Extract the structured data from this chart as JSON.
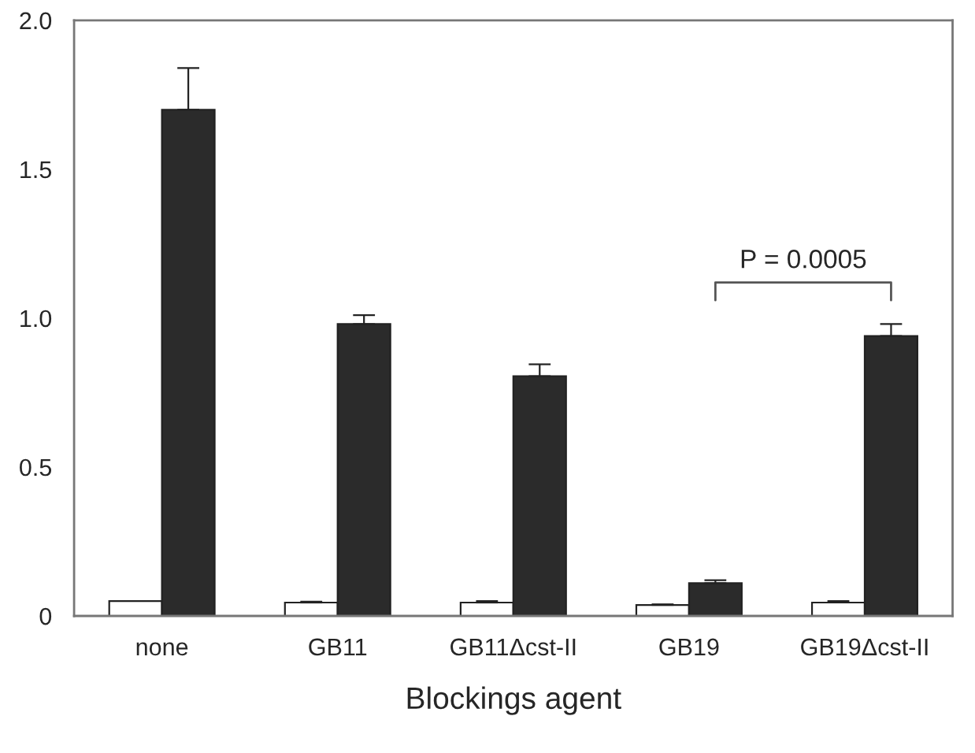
{
  "chart_data": {
    "type": "bar",
    "xlabel": "Blockings agent",
    "categories": [
      "none",
      "GB11",
      "GB11Δcst-II",
      "GB19",
      "GB19Δcst-II"
    ],
    "series": [
      {
        "color": "#ffffff",
        "values": [
          0.05,
          0.045,
          0.045,
          0.037,
          0.045
        ],
        "errors": [
          null,
          0.003,
          0.005,
          0.002,
          0.005
        ]
      },
      {
        "color": "#2b2b2b",
        "values": [
          1.7,
          0.98,
          0.805,
          0.11,
          0.94
        ],
        "errors": [
          0.14,
          0.03,
          0.04,
          0.01,
          0.04
        ]
      }
    ],
    "ylim": [
      0,
      2.0
    ],
    "yticks": [
      0,
      0.5,
      {
        "value": 1.0,
        "label": "1.0"
      },
      1.5,
      {
        "value": 2.0,
        "label": "2.0"
      }
    ],
    "annotations": [
      "P = 0.0005"
    ],
    "grid": false,
    "legend": false
  }
}
